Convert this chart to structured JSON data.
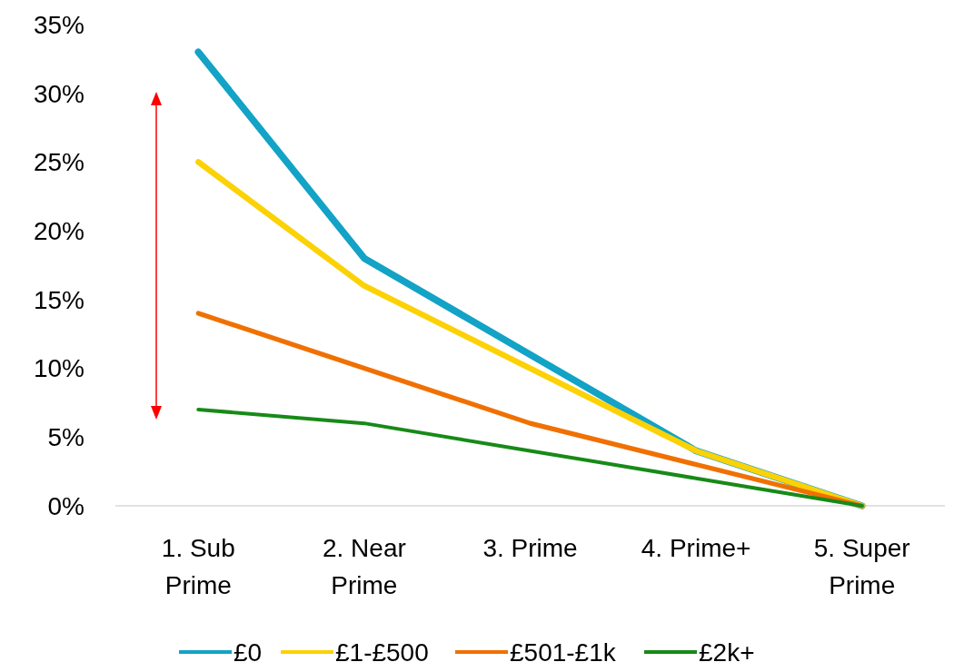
{
  "chart_data": {
    "type": "line",
    "categories": [
      "1. Sub Prime",
      "2. Near Prime",
      "3. Prime",
      "4. Prime+",
      "5. Super Prime"
    ],
    "series": [
      {
        "name": "£0",
        "color": "#12a3c6",
        "values": [
          33,
          18,
          11,
          4,
          0
        ]
      },
      {
        "name": "£1-£500",
        "color": "#fcd206",
        "values": [
          25,
          16,
          10,
          4,
          0
        ]
      },
      {
        "name": "£501-£1k",
        "color": "#f07000",
        "values": [
          14,
          10,
          6,
          3,
          0
        ]
      },
      {
        "name": "£2k+",
        "color": "#178a17",
        "values": [
          7,
          6,
          4,
          2,
          0
        ]
      }
    ],
    "ylim": [
      0,
      35
    ],
    "yticks": [
      {
        "value": 0,
        "label": "0%"
      },
      {
        "value": 5,
        "label": "5%"
      },
      {
        "value": 10,
        "label": "10%"
      },
      {
        "value": 15,
        "label": "15%"
      },
      {
        "value": 20,
        "label": "20%"
      },
      {
        "value": 25,
        "label": "25%"
      },
      {
        "value": 30,
        "label": "30%"
      },
      {
        "value": 35,
        "label": "35%"
      }
    ],
    "grid": false,
    "legend": "bottom",
    "marker": "none",
    "line_style": "solid"
  }
}
